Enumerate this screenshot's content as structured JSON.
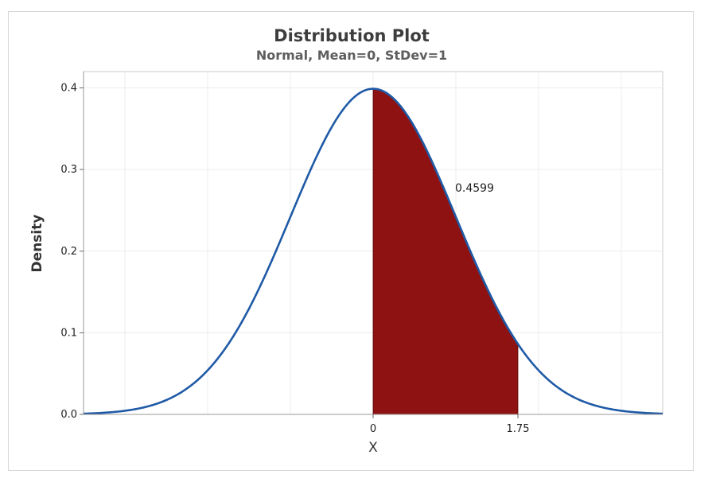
{
  "chart_data": {
    "type": "area",
    "title": "Distribution Plot",
    "subtitle": "Normal, Mean=0, StDev=1",
    "xlabel": "X",
    "ylabel": "Density",
    "distribution": {
      "name": "Normal",
      "mean": 0,
      "stdev": 1
    },
    "xlim": [
      -3.5,
      3.5
    ],
    "ylim": [
      0,
      0.42
    ],
    "y_ticks": [
      0.0,
      0.1,
      0.2,
      0.3,
      0.4
    ],
    "y_tick_labels": [
      "0.0",
      "0.1",
      "0.2",
      "0.3",
      "0.4"
    ],
    "x_ticks": [
      0,
      1.75
    ],
    "x_tick_labels": [
      "0",
      "1.75"
    ],
    "shaded_region": {
      "from": 0,
      "to": 1.75,
      "probability": 0.4599,
      "label": "0.4599"
    },
    "grid": true,
    "colors": {
      "curve": "#1f5aa6",
      "shade": "#8e1212",
      "grid": "#ececec",
      "axis": "#999999"
    }
  }
}
